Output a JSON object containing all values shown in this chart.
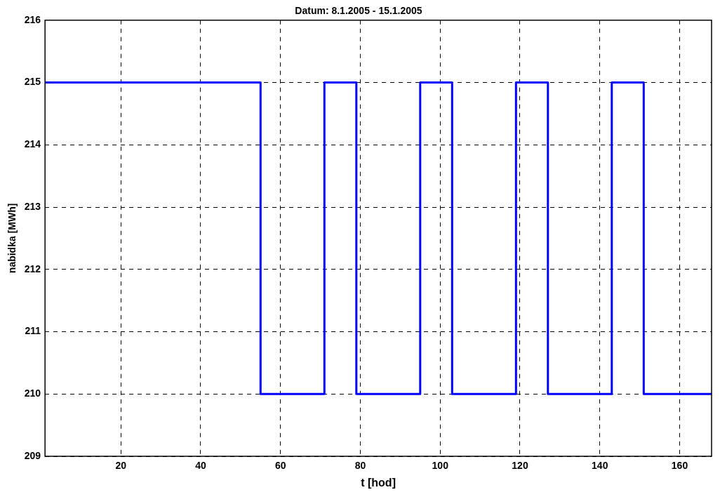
{
  "chart_data": {
    "type": "step",
    "title": "Datum: 8.1.2005 - 15.1.2005",
    "xlabel": "t [hod]",
    "ylabel": "nabidka [MWh]",
    "x": [
      1,
      55,
      71,
      79,
      95,
      103,
      119,
      127,
      143,
      151,
      168
    ],
    "series": [
      {
        "color": "#0000ff",
        "values": [
          215,
          210,
          215,
          210,
          215,
          210,
          215,
          210,
          215,
          210,
          210
        ]
      }
    ],
    "xlim": [
      1,
      168
    ],
    "xticks": [
      20,
      40,
      60,
      80,
      100,
      120,
      140,
      160
    ],
    "ylim": [
      209,
      216
    ],
    "yticks": [
      209,
      210,
      211,
      212,
      213,
      214,
      215,
      216
    ],
    "grid": true,
    "legend": false,
    "marker": "none",
    "line_style": "solid"
  }
}
